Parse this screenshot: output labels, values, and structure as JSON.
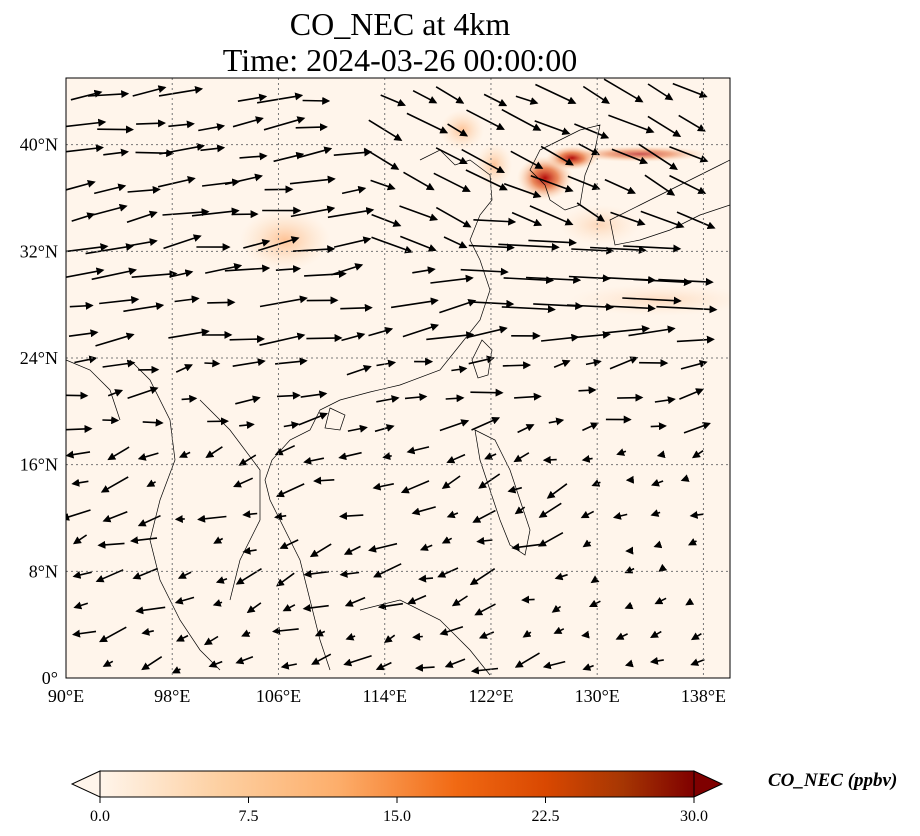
{
  "title": {
    "line1": "CO_NEC at 4km",
    "line2": "Time: 2024-03-26 00:00:00"
  },
  "map": {
    "extent": {
      "lon_min": 90,
      "lon_max": 140,
      "lat_min": 0,
      "lat_max": 45
    },
    "lon_ticks": [
      {
        "value": 90,
        "label": "90°E"
      },
      {
        "value": 98,
        "label": "98°E"
      },
      {
        "value": 106,
        "label": "106°E"
      },
      {
        "value": 114,
        "label": "114°E"
      },
      {
        "value": 122,
        "label": "122°E"
      },
      {
        "value": 130,
        "label": "130°E"
      },
      {
        "value": 138,
        "label": "138°E"
      }
    ],
    "lat_ticks": [
      {
        "value": 0,
        "label": "0°"
      },
      {
        "value": 8,
        "label": "8°N"
      },
      {
        "value": 16,
        "label": "16°N"
      },
      {
        "value": 24,
        "label": "24°N"
      },
      {
        "value": 32,
        "label": "32°N"
      },
      {
        "value": 40,
        "label": "40°N"
      }
    ],
    "gridlines": true,
    "background_color": "#fff5eb",
    "colors": {
      "land_border": "#000000",
      "grid": "#777777",
      "wind_arrow": "#000000"
    }
  },
  "colorbar": {
    "label": "CO_NEC (ppbv)",
    "min": 0,
    "max": 30,
    "ticks": [
      "0.0",
      "7.5",
      "15.0",
      "22.5",
      "30.0"
    ],
    "colormap": [
      "#fff5eb",
      "#fdd0a2",
      "#fdae6b",
      "#f16913",
      "#d94801",
      "#a63603",
      "#7f0000"
    ],
    "extend": "both"
  },
  "plumes": [
    {
      "lon": 127.5,
      "lat": 37.5,
      "value": 28
    },
    {
      "lon": 129.0,
      "lat": 39.2,
      "value": 26
    },
    {
      "lon": 126.2,
      "lat": 36.5,
      "value": 24
    },
    {
      "lon": 133.0,
      "lat": 39.5,
      "value": 16
    },
    {
      "lon": 118.0,
      "lat": 41.0,
      "value": 9
    },
    {
      "lon": 120.5,
      "lat": 38.0,
      "value": 6
    },
    {
      "lon": 106.5,
      "lat": 32.5,
      "value": 5
    }
  ]
}
